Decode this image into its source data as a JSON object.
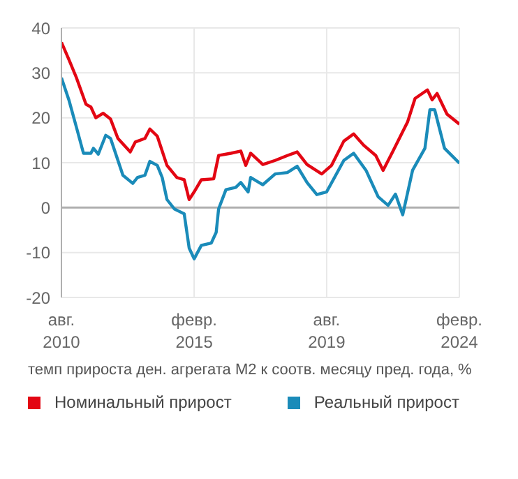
{
  "chart_data": {
    "type": "line",
    "annotations": [
      "темп прироста ден. агрегата М2 к соотв. месяцу пред. года, %"
    ],
    "xlim": [
      "2010-08",
      "2024-02"
    ],
    "xticks": [
      {
        "value": "2010-08",
        "label": "авг.\n2010"
      },
      {
        "value": "2015-02",
        "label": "февр.\n2015"
      },
      {
        "value": "2019-08",
        "label": "авг.\n2019"
      },
      {
        "value": "2024-02",
        "label": "февр.\n2024"
      }
    ],
    "ylim": [
      -20,
      40
    ],
    "yticks": [
      -20,
      -10,
      0,
      10,
      20,
      30,
      40
    ],
    "grid": true,
    "legend": "bottom",
    "marker": "none",
    "line_style": "solid",
    "ref_lines": [
      {
        "axis": "y",
        "value": 0,
        "color": "#b0b0b0"
      }
    ],
    "series": [
      {
        "name": "Номинальный прирост",
        "color": "#e30613",
        "x": [
          "2010-08",
          "2010-11",
          "2011-02",
          "2011-06",
          "2011-08",
          "2011-10",
          "2012-01",
          "2012-04",
          "2012-07",
          "2012-12",
          "2013-02",
          "2013-06",
          "2013-08",
          "2013-11",
          "2014-03",
          "2014-07",
          "2014-10",
          "2014-12",
          "2015-02",
          "2015-05",
          "2015-10",
          "2015-12",
          "2016-05",
          "2016-09",
          "2016-11",
          "2017-01",
          "2017-06",
          "2017-11",
          "2018-04",
          "2018-08",
          "2018-12",
          "2019-06",
          "2019-10",
          "2020-03",
          "2020-07",
          "2020-11",
          "2021-04",
          "2021-07",
          "2021-11",
          "2022-03",
          "2022-05",
          "2022-08",
          "2023-01",
          "2023-03",
          "2023-05",
          "2023-09",
          "2024-02"
        ],
        "values": [
          36.8,
          33,
          29,
          23,
          22.4,
          20,
          21,
          19.7,
          15.4,
          12.4,
          14.6,
          15.4,
          17.5,
          15.9,
          9.4,
          6.7,
          6.2,
          1.8,
          3.5,
          6.2,
          6.4,
          11.6,
          12.1,
          12.6,
          9.4,
          12.1,
          9.6,
          10.5,
          11.6,
          12.4,
          9.6,
          7.5,
          9.4,
          14.8,
          16.4,
          13.9,
          11.6,
          8.3,
          12.6,
          16.9,
          19.1,
          24.3,
          26.2,
          24,
          25.4,
          20.8,
          18.6
        ]
      },
      {
        "name": "Реальный прирост",
        "color": "#1a8bb9",
        "x": [
          "2010-08",
          "2010-11",
          "2011-02",
          "2011-05",
          "2011-08",
          "2011-09",
          "2011-11",
          "2012-02",
          "2012-04",
          "2012-09",
          "2013-01",
          "2013-03",
          "2013-06",
          "2013-08",
          "2013-11",
          "2014-01",
          "2014-03",
          "2014-06",
          "2014-10",
          "2014-12",
          "2015-02",
          "2015-05",
          "2015-09",
          "2015-11",
          "2015-12",
          "2016-03",
          "2016-07",
          "2016-09",
          "2016-12",
          "2017-01",
          "2017-06",
          "2017-11",
          "2018-04",
          "2018-08",
          "2018-12",
          "2019-04",
          "2019-08",
          "2020-03",
          "2020-07",
          "2020-12",
          "2021-05",
          "2021-09",
          "2021-12",
          "2022-03",
          "2022-07",
          "2022-12",
          "2023-02",
          "2023-04",
          "2023-08",
          "2024-02"
        ],
        "values": [
          28.9,
          24,
          18,
          12.1,
          12.1,
          13.2,
          11.9,
          16.1,
          15.4,
          7.2,
          5.4,
          6.7,
          7.2,
          10.3,
          9.4,
          6.7,
          1.8,
          -0.3,
          -1.4,
          -9,
          -11.4,
          -8.4,
          -7.9,
          -5.5,
          -0.3,
          4,
          4.5,
          5.6,
          3.5,
          6.7,
          5.1,
          7.5,
          7.8,
          9.2,
          5.6,
          2.9,
          3.5,
          10.5,
          12.1,
          8.3,
          2.4,
          0.5,
          3,
          -1.6,
          8.3,
          13.2,
          21.8,
          21.8,
          13.2,
          9.9
        ]
      }
    ]
  }
}
